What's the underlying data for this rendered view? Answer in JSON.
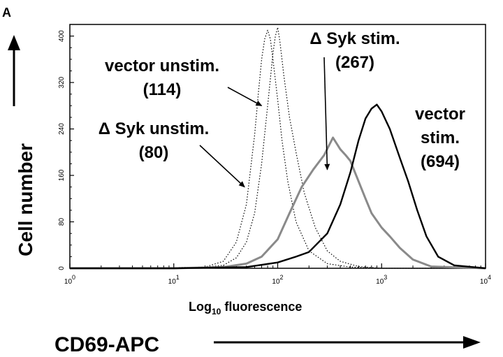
{
  "panel_label": "A",
  "y_title": "Cell number",
  "x_title_main": "Log",
  "x_title_sub": "10",
  "x_title_rest": " fluorescence",
  "marker_label": "CD69-APC",
  "chart_data": {
    "type": "line",
    "xscale": "log",
    "xlim": [
      1,
      10000
    ],
    "ylim": [
      0,
      420
    ],
    "grid": false,
    "x_ticks": [
      {
        "value": 1,
        "base": "10",
        "exp": "0"
      },
      {
        "value": 10,
        "base": "10",
        "exp": "1"
      },
      {
        "value": 100,
        "base": "10",
        "exp": "2"
      },
      {
        "value": 1000,
        "base": "10",
        "exp": "3"
      },
      {
        "value": 10000,
        "base": "10",
        "exp": "4"
      }
    ],
    "y_ticks": [
      "0",
      "80",
      "160",
      "240",
      "320",
      "400"
    ],
    "y_tick_values": [
      0,
      80,
      160,
      240,
      320,
      400
    ],
    "series": [
      {
        "color": "#000000",
        "style": "dotted",
        "width": 1.2,
        "points": [
          [
            1,
            0
          ],
          [
            10,
            1
          ],
          [
            20,
            2
          ],
          [
            30,
            12
          ],
          [
            40,
            45
          ],
          [
            50,
            110
          ],
          [
            60,
            230
          ],
          [
            65,
            300
          ],
          [
            70,
            360
          ],
          [
            75,
            395
          ],
          [
            80,
            410
          ],
          [
            85,
            395
          ],
          [
            90,
            360
          ],
          [
            100,
            290
          ],
          [
            110,
            220
          ],
          [
            125,
            150
          ],
          [
            150,
            80
          ],
          [
            200,
            30
          ],
          [
            300,
            8
          ],
          [
            500,
            2
          ],
          [
            1000,
            0
          ],
          [
            10000,
            0
          ]
        ]
      },
      {
        "color": "#000000",
        "style": "dotted",
        "width": 1.2,
        "points": [
          [
            1,
            0
          ],
          [
            10,
            1
          ],
          [
            20,
            2
          ],
          [
            30,
            5
          ],
          [
            40,
            18
          ],
          [
            50,
            45
          ],
          [
            60,
            95
          ],
          [
            70,
            180
          ],
          [
            80,
            280
          ],
          [
            90,
            370
          ],
          [
            95,
            400
          ],
          [
            100,
            415
          ],
          [
            105,
            390
          ],
          [
            115,
            330
          ],
          [
            130,
            260
          ],
          [
            150,
            200
          ],
          [
            180,
            130
          ],
          [
            230,
            70
          ],
          [
            300,
            30
          ],
          [
            400,
            12
          ],
          [
            600,
            3
          ],
          [
            1000,
            0
          ],
          [
            10000,
            0
          ]
        ]
      },
      {
        "color": "#8a8a8a",
        "style": "solid",
        "width": 3,
        "points": [
          [
            1,
            0
          ],
          [
            10,
            0
          ],
          [
            30,
            2
          ],
          [
            50,
            8
          ],
          [
            70,
            20
          ],
          [
            100,
            50
          ],
          [
            130,
            95
          ],
          [
            170,
            140
          ],
          [
            220,
            170
          ],
          [
            280,
            195
          ],
          [
            340,
            225
          ],
          [
            400,
            205
          ],
          [
            450,
            195
          ],
          [
            500,
            185
          ],
          [
            600,
            150
          ],
          [
            700,
            120
          ],
          [
            800,
            95
          ],
          [
            1000,
            70
          ],
          [
            1200,
            55
          ],
          [
            1500,
            35
          ],
          [
            2000,
            15
          ],
          [
            3000,
            3
          ],
          [
            10000,
            0
          ]
        ]
      },
      {
        "color": "#000000",
        "style": "solid",
        "width": 2.4,
        "points": [
          [
            1,
            0
          ],
          [
            10,
            0
          ],
          [
            50,
            2
          ],
          [
            100,
            10
          ],
          [
            150,
            20
          ],
          [
            200,
            28
          ],
          [
            300,
            60
          ],
          [
            400,
            110
          ],
          [
            500,
            165
          ],
          [
            600,
            220
          ],
          [
            700,
            258
          ],
          [
            800,
            275
          ],
          [
            900,
            282
          ],
          [
            1000,
            270
          ],
          [
            1200,
            240
          ],
          [
            1500,
            190
          ],
          [
            1800,
            150
          ],
          [
            2200,
            100
          ],
          [
            2700,
            55
          ],
          [
            3500,
            20
          ],
          [
            5000,
            5
          ],
          [
            10000,
            0
          ]
        ]
      }
    ],
    "annotations": [
      {
        "lines": [
          "vector unstim.",
          "(114)"
        ],
        "point": [
          70,
          280
        ]
      },
      {
        "lines": [
          "Δ Syk stim.",
          "(267)"
        ],
        "point": [
          300,
          170
        ]
      },
      {
        "lines": [
          "Δ Syk unstim.",
          "(80)"
        ],
        "point": [
          48,
          140
        ]
      },
      {
        "lines": [
          "vector",
          "stim.",
          "(694)"
        ],
        "point": null
      }
    ]
  }
}
